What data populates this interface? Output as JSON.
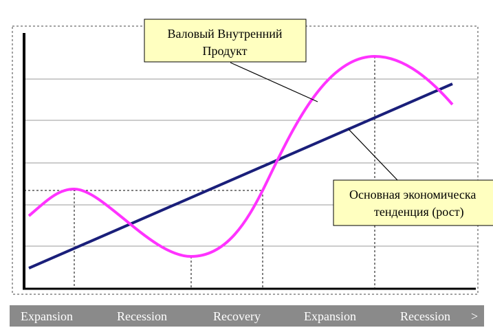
{
  "callouts": [
    {
      "lines": [
        "Валовый Внутренний",
        "Продукт"
      ]
    },
    {
      "lines": [
        "Основная экономическа",
        "тенденция (рост)"
      ]
    }
  ],
  "phases": [
    "Expansion",
    "Recession",
    "Recovery",
    "Expansion",
    "Recession",
    ">"
  ]
}
